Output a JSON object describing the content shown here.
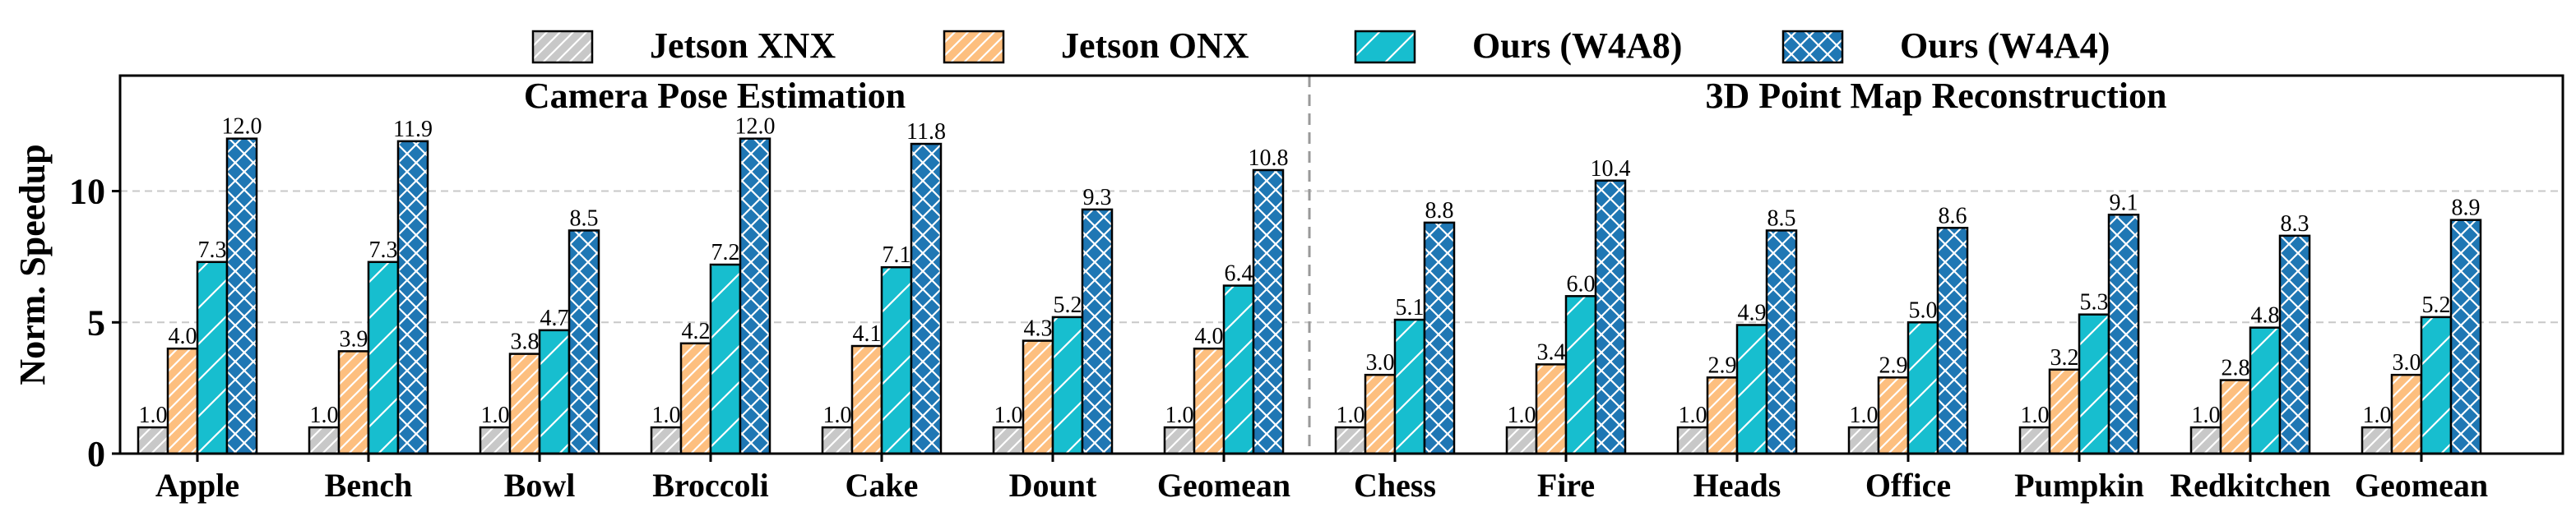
{
  "chart_data": {
    "type": "bar",
    "ylabel": "Norm. Speedup",
    "ylim": [
      0,
      14.4
    ],
    "yticks": [
      0,
      5,
      10
    ],
    "grid": "horizontal dashed",
    "legend_position": "top-center",
    "groups": [
      {
        "title": "Camera Pose Estimation",
        "start": 0,
        "end": 6
      },
      {
        "title": "3D Point Map Reconstruction",
        "start": 7,
        "end": 13
      }
    ],
    "categories": [
      "Apple",
      "Bench",
      "Bowl",
      "Broccoli",
      "Cake",
      "Dount",
      "Geomean",
      "Chess",
      "Fire",
      "Heads",
      "Office",
      "Pumpkin",
      "Redkitchen",
      "Geomean"
    ],
    "series": [
      {
        "name": "Jetson XNX",
        "color": "#c8c8c8",
        "hatch": "diagonal",
        "values": [
          1.0,
          1.0,
          1.0,
          1.0,
          1.0,
          1.0,
          1.0,
          1.0,
          1.0,
          1.0,
          1.0,
          1.0,
          1.0,
          1.0
        ],
        "labels": [
          "1.0",
          "1.0",
          "1.0",
          "1.0",
          "1.0",
          "1.0",
          "1.0",
          "1.0",
          "1.0",
          "1.0",
          "1.0",
          "1.0",
          "1.0",
          "1.0"
        ]
      },
      {
        "name": "Jetson ONX",
        "color": "#fdbf7f",
        "hatch": "diagonal",
        "values": [
          4.0,
          3.9,
          3.8,
          4.2,
          4.1,
          4.3,
          4.0,
          3.0,
          3.4,
          2.9,
          2.9,
          3.2,
          2.8,
          3.0
        ],
        "labels": [
          "4.0",
          "3.9",
          "3.8",
          "4.2",
          "4.1",
          "4.3",
          "4.0",
          "3.0",
          "3.4",
          "2.9",
          "2.9",
          "3.2",
          "2.8",
          "3.0"
        ]
      },
      {
        "name": "Ours (W4A8)",
        "color": "#17becf",
        "hatch": "sparse-diagonal",
        "values": [
          7.3,
          7.3,
          4.7,
          7.2,
          7.1,
          5.2,
          6.4,
          5.1,
          6.0,
          4.9,
          5.0,
          5.3,
          4.8,
          5.2
        ],
        "labels": [
          "7.3",
          "7.3",
          "4.7",
          "7.2",
          "7.1",
          "5.2",
          "6.4",
          "5.1",
          "6.0",
          "4.9",
          "5.0",
          "5.3",
          "4.8",
          "5.2"
        ]
      },
      {
        "name": "Ours (W4A4)",
        "color": "#1f77b4",
        "hatch": "cross",
        "values": [
          12.0,
          11.9,
          8.5,
          12.0,
          11.8,
          9.3,
          10.8,
          8.8,
          10.4,
          8.5,
          8.6,
          9.1,
          8.3,
          8.9
        ],
        "labels": [
          "12.0",
          "11.9",
          "8.5",
          "12.0",
          "11.8",
          "9.3",
          "10.8",
          "8.8",
          "10.4",
          "8.5",
          "8.6",
          "9.1",
          "8.3",
          "8.9"
        ]
      }
    ]
  }
}
